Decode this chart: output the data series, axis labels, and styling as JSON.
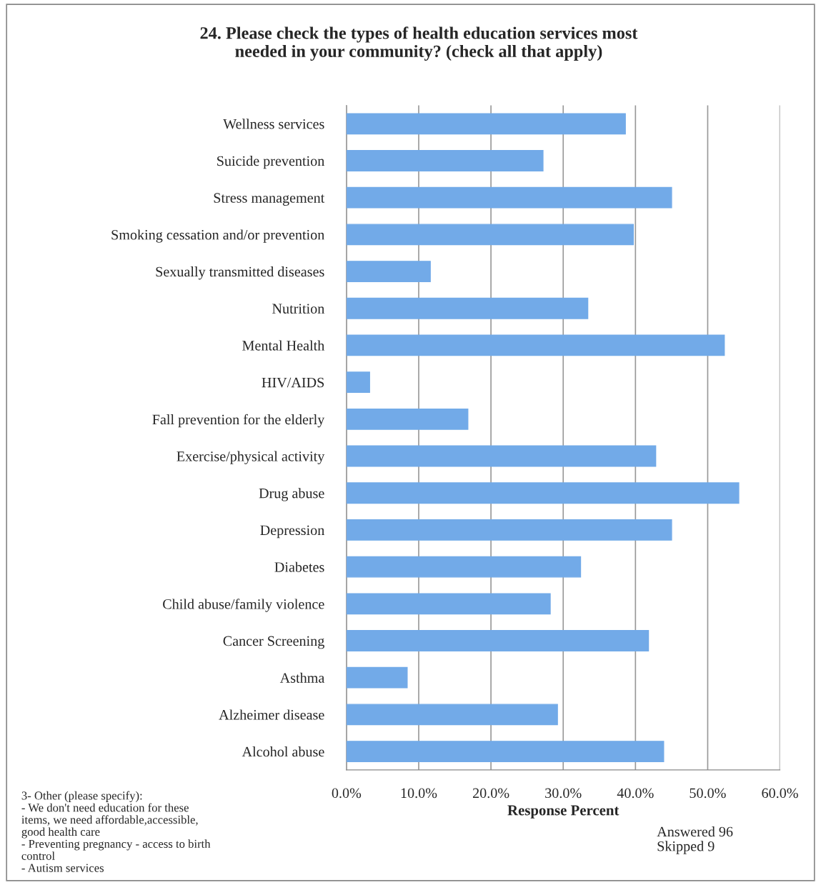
{
  "chart_data": {
    "type": "bar",
    "orientation": "horizontal",
    "title": "24. Please check the types of health education services most\nneeded in your community? (check all that apply)",
    "xlabel": "Response Percent",
    "categories": [
      "Wellness services",
      "Suicide prevention",
      "Stress management",
      "Smoking cessation and/or prevention",
      "Sexually transmitted diseases",
      "Nutrition",
      "Mental Health",
      "HIV/AIDS",
      "Fall prevention for the elderly",
      "Exercise/physical activity",
      "Drug abuse",
      "Depression",
      "Diabetes",
      "Child abuse/family violence",
      "Cancer Screening",
      "Asthma",
      "Alzheimer disease",
      "Alcohol abuse"
    ],
    "values": [
      38.6,
      27.2,
      45.0,
      39.7,
      11.6,
      33.4,
      52.3,
      3.2,
      16.8,
      42.8,
      54.3,
      45.0,
      32.4,
      28.2,
      41.8,
      8.4,
      29.2,
      43.9
    ],
    "color": "#72aae8",
    "xlim": [
      0,
      60
    ],
    "xticks": [
      {
        "value": 0,
        "label": "0.0%"
      },
      {
        "value": 10,
        "label": "10.0%"
      },
      {
        "value": 20,
        "label": "20.0%"
      },
      {
        "value": 30,
        "label": "30.0%"
      },
      {
        "value": 40,
        "label": "40.0%"
      },
      {
        "value": 50,
        "label": "50.0%"
      },
      {
        "value": 60,
        "label": "60.0%"
      }
    ],
    "grid": "x",
    "legend": false,
    "annotations": [
      "3- Other (please specify):\n- We don't need education for these\nitems, we need affordable,accessible,\ngood health care\n- Preventing pregnancy - access to birth\ncontrol\n- Autism services",
      "Answered 96\nSkipped 9"
    ]
  }
}
